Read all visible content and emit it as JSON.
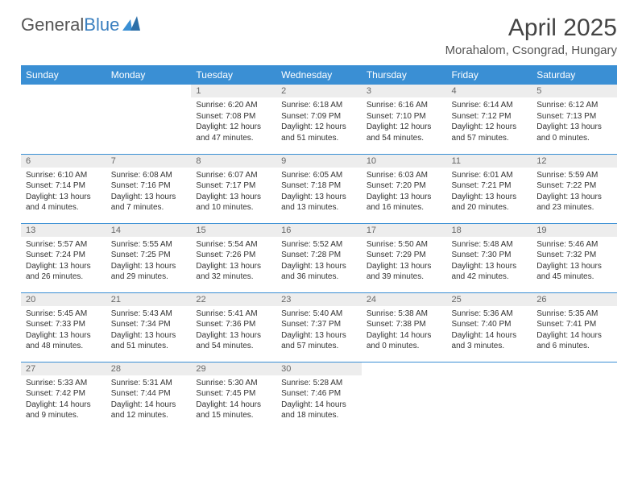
{
  "brand": {
    "part1": "General",
    "part2": "Blue"
  },
  "title": "April 2025",
  "subtitle": "Morahalom, Csongrad, Hungary",
  "colors": {
    "header_bg": "#3a8fd4",
    "header_fg": "#ffffff",
    "daynum_bg": "#ededed",
    "row_border": "#3a8fd4",
    "text": "#333333",
    "background": "#ffffff"
  },
  "weekdays": [
    "Sunday",
    "Monday",
    "Tuesday",
    "Wednesday",
    "Thursday",
    "Friday",
    "Saturday"
  ],
  "weeks": [
    [
      {
        "n": "",
        "l1": "",
        "l2": "",
        "l3": "",
        "l4": ""
      },
      {
        "n": "",
        "l1": "",
        "l2": "",
        "l3": "",
        "l4": ""
      },
      {
        "n": "1",
        "l1": "Sunrise: 6:20 AM",
        "l2": "Sunset: 7:08 PM",
        "l3": "Daylight: 12 hours",
        "l4": "and 47 minutes."
      },
      {
        "n": "2",
        "l1": "Sunrise: 6:18 AM",
        "l2": "Sunset: 7:09 PM",
        "l3": "Daylight: 12 hours",
        "l4": "and 51 minutes."
      },
      {
        "n": "3",
        "l1": "Sunrise: 6:16 AM",
        "l2": "Sunset: 7:10 PM",
        "l3": "Daylight: 12 hours",
        "l4": "and 54 minutes."
      },
      {
        "n": "4",
        "l1": "Sunrise: 6:14 AM",
        "l2": "Sunset: 7:12 PM",
        "l3": "Daylight: 12 hours",
        "l4": "and 57 minutes."
      },
      {
        "n": "5",
        "l1": "Sunrise: 6:12 AM",
        "l2": "Sunset: 7:13 PM",
        "l3": "Daylight: 13 hours",
        "l4": "and 0 minutes."
      }
    ],
    [
      {
        "n": "6",
        "l1": "Sunrise: 6:10 AM",
        "l2": "Sunset: 7:14 PM",
        "l3": "Daylight: 13 hours",
        "l4": "and 4 minutes."
      },
      {
        "n": "7",
        "l1": "Sunrise: 6:08 AM",
        "l2": "Sunset: 7:16 PM",
        "l3": "Daylight: 13 hours",
        "l4": "and 7 minutes."
      },
      {
        "n": "8",
        "l1": "Sunrise: 6:07 AM",
        "l2": "Sunset: 7:17 PM",
        "l3": "Daylight: 13 hours",
        "l4": "and 10 minutes."
      },
      {
        "n": "9",
        "l1": "Sunrise: 6:05 AM",
        "l2": "Sunset: 7:18 PM",
        "l3": "Daylight: 13 hours",
        "l4": "and 13 minutes."
      },
      {
        "n": "10",
        "l1": "Sunrise: 6:03 AM",
        "l2": "Sunset: 7:20 PM",
        "l3": "Daylight: 13 hours",
        "l4": "and 16 minutes."
      },
      {
        "n": "11",
        "l1": "Sunrise: 6:01 AM",
        "l2": "Sunset: 7:21 PM",
        "l3": "Daylight: 13 hours",
        "l4": "and 20 minutes."
      },
      {
        "n": "12",
        "l1": "Sunrise: 5:59 AM",
        "l2": "Sunset: 7:22 PM",
        "l3": "Daylight: 13 hours",
        "l4": "and 23 minutes."
      }
    ],
    [
      {
        "n": "13",
        "l1": "Sunrise: 5:57 AM",
        "l2": "Sunset: 7:24 PM",
        "l3": "Daylight: 13 hours",
        "l4": "and 26 minutes."
      },
      {
        "n": "14",
        "l1": "Sunrise: 5:55 AM",
        "l2": "Sunset: 7:25 PM",
        "l3": "Daylight: 13 hours",
        "l4": "and 29 minutes."
      },
      {
        "n": "15",
        "l1": "Sunrise: 5:54 AM",
        "l2": "Sunset: 7:26 PM",
        "l3": "Daylight: 13 hours",
        "l4": "and 32 minutes."
      },
      {
        "n": "16",
        "l1": "Sunrise: 5:52 AM",
        "l2": "Sunset: 7:28 PM",
        "l3": "Daylight: 13 hours",
        "l4": "and 36 minutes."
      },
      {
        "n": "17",
        "l1": "Sunrise: 5:50 AM",
        "l2": "Sunset: 7:29 PM",
        "l3": "Daylight: 13 hours",
        "l4": "and 39 minutes."
      },
      {
        "n": "18",
        "l1": "Sunrise: 5:48 AM",
        "l2": "Sunset: 7:30 PM",
        "l3": "Daylight: 13 hours",
        "l4": "and 42 minutes."
      },
      {
        "n": "19",
        "l1": "Sunrise: 5:46 AM",
        "l2": "Sunset: 7:32 PM",
        "l3": "Daylight: 13 hours",
        "l4": "and 45 minutes."
      }
    ],
    [
      {
        "n": "20",
        "l1": "Sunrise: 5:45 AM",
        "l2": "Sunset: 7:33 PM",
        "l3": "Daylight: 13 hours",
        "l4": "and 48 minutes."
      },
      {
        "n": "21",
        "l1": "Sunrise: 5:43 AM",
        "l2": "Sunset: 7:34 PM",
        "l3": "Daylight: 13 hours",
        "l4": "and 51 minutes."
      },
      {
        "n": "22",
        "l1": "Sunrise: 5:41 AM",
        "l2": "Sunset: 7:36 PM",
        "l3": "Daylight: 13 hours",
        "l4": "and 54 minutes."
      },
      {
        "n": "23",
        "l1": "Sunrise: 5:40 AM",
        "l2": "Sunset: 7:37 PM",
        "l3": "Daylight: 13 hours",
        "l4": "and 57 minutes."
      },
      {
        "n": "24",
        "l1": "Sunrise: 5:38 AM",
        "l2": "Sunset: 7:38 PM",
        "l3": "Daylight: 14 hours",
        "l4": "and 0 minutes."
      },
      {
        "n": "25",
        "l1": "Sunrise: 5:36 AM",
        "l2": "Sunset: 7:40 PM",
        "l3": "Daylight: 14 hours",
        "l4": "and 3 minutes."
      },
      {
        "n": "26",
        "l1": "Sunrise: 5:35 AM",
        "l2": "Sunset: 7:41 PM",
        "l3": "Daylight: 14 hours",
        "l4": "and 6 minutes."
      }
    ],
    [
      {
        "n": "27",
        "l1": "Sunrise: 5:33 AM",
        "l2": "Sunset: 7:42 PM",
        "l3": "Daylight: 14 hours",
        "l4": "and 9 minutes."
      },
      {
        "n": "28",
        "l1": "Sunrise: 5:31 AM",
        "l2": "Sunset: 7:44 PM",
        "l3": "Daylight: 14 hours",
        "l4": "and 12 minutes."
      },
      {
        "n": "29",
        "l1": "Sunrise: 5:30 AM",
        "l2": "Sunset: 7:45 PM",
        "l3": "Daylight: 14 hours",
        "l4": "and 15 minutes."
      },
      {
        "n": "30",
        "l1": "Sunrise: 5:28 AM",
        "l2": "Sunset: 7:46 PM",
        "l3": "Daylight: 14 hours",
        "l4": "and 18 minutes."
      },
      {
        "n": "",
        "l1": "",
        "l2": "",
        "l3": "",
        "l4": ""
      },
      {
        "n": "",
        "l1": "",
        "l2": "",
        "l3": "",
        "l4": ""
      },
      {
        "n": "",
        "l1": "",
        "l2": "",
        "l3": "",
        "l4": ""
      }
    ]
  ]
}
